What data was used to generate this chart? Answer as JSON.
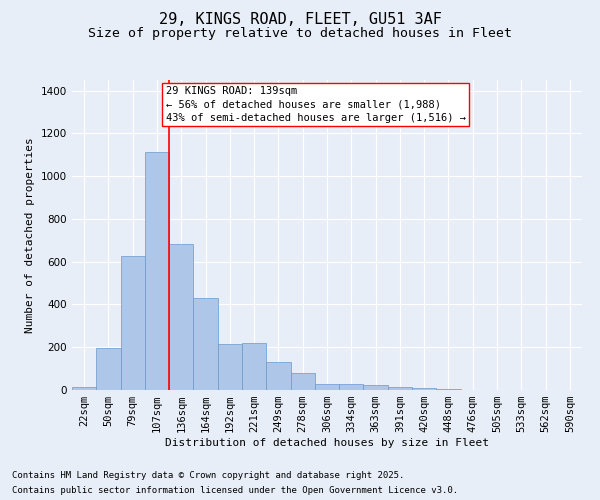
{
  "title_line1": "29, KINGS ROAD, FLEET, GU51 3AF",
  "title_line2": "Size of property relative to detached houses in Fleet",
  "xlabel": "Distribution of detached houses by size in Fleet",
  "ylabel": "Number of detached properties",
  "categories": [
    "22sqm",
    "50sqm",
    "79sqm",
    "107sqm",
    "136sqm",
    "164sqm",
    "192sqm",
    "221sqm",
    "249sqm",
    "278sqm",
    "306sqm",
    "334sqm",
    "363sqm",
    "391sqm",
    "420sqm",
    "448sqm",
    "476sqm",
    "505sqm",
    "533sqm",
    "562sqm",
    "590sqm"
  ],
  "values": [
    15,
    195,
    625,
    1115,
    685,
    430,
    215,
    220,
    130,
    80,
    30,
    30,
    25,
    15,
    10,
    5,
    0,
    0,
    0,
    0,
    0
  ],
  "bar_color": "#aec6e8",
  "bar_edge_color": "#6699cc",
  "background_color": "#e8eef8",
  "grid_color": "#ffffff",
  "vline_position": 3.5,
  "vline_color": "red",
  "annotation_text_line1": "29 KINGS ROAD: 139sqm",
  "annotation_text_line2": "← 56% of detached houses are smaller (1,988)",
  "annotation_text_line3": "43% of semi-detached houses are larger (1,516) →",
  "annotation_box_color": "white",
  "annotation_box_edge": "red",
  "ylim": [
    0,
    1450
  ],
  "yticks": [
    0,
    200,
    400,
    600,
    800,
    1000,
    1200,
    1400
  ],
  "footer_line1": "Contains HM Land Registry data © Crown copyright and database right 2025.",
  "footer_line2": "Contains public sector information licensed under the Open Government Licence v3.0.",
  "title_fontsize": 11,
  "subtitle_fontsize": 9.5,
  "axis_label_fontsize": 8,
  "tick_fontsize": 7.5,
  "annotation_fontsize": 7.5,
  "footer_fontsize": 6.5
}
